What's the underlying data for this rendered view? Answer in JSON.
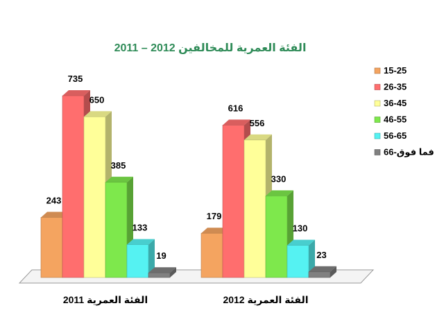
{
  "chart_data": {
    "type": "bar",
    "title": "الفئة العمرية للمخالفين 2012 – 2011",
    "groups": [
      "الفئة العمرية 2011",
      "الفئة العمرية 2012"
    ],
    "series": [
      {
        "name": "15-25",
        "color": "#f4a460",
        "values": [
          243,
          179
        ]
      },
      {
        "name": "26-35",
        "color": "#ff6e6e",
        "values": [
          735,
          616
        ]
      },
      {
        "name": "36-45",
        "color": "#ffff99",
        "values": [
          650,
          556
        ]
      },
      {
        "name": "46-55",
        "color": "#7ee84c",
        "values": [
          385,
          330
        ]
      },
      {
        "name": "56-65",
        "color": "#55f2f2",
        "values": [
          133,
          130
        ]
      },
      {
        "name": "66-فما فوق",
        "color": "#808080",
        "values": [
          19,
          23
        ]
      }
    ],
    "ylim": [
      0,
      800
    ],
    "legend_position": "right",
    "grid": false
  }
}
